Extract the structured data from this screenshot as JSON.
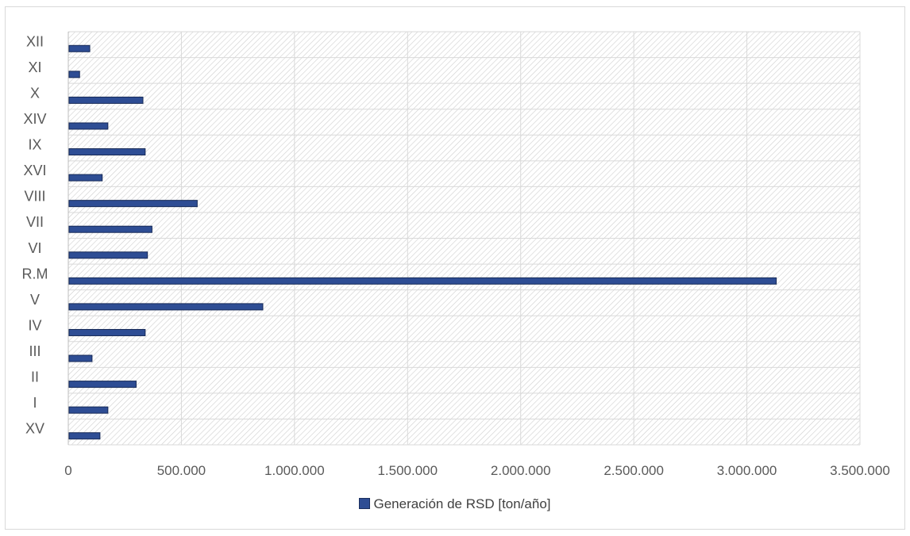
{
  "chart_data": {
    "type": "bar",
    "orientation": "horizontal",
    "categories": [
      "XV",
      "I",
      "II",
      "III",
      "IV",
      "V",
      "R.M",
      "VI",
      "VII",
      "VIII",
      "XVI",
      "IX",
      "XIV",
      "X",
      "XI",
      "XII"
    ],
    "series": [
      {
        "name": "Generación de RSD [ton/año]",
        "color": "#2e4d94",
        "values": [
          140000,
          175000,
          300000,
          105000,
          340000,
          860000,
          3130000,
          350000,
          370000,
          570000,
          150000,
          340000,
          175000,
          330000,
          50000,
          95000
        ]
      }
    ],
    "x_ticks": [
      "0",
      "500.000",
      "1.000.000",
      "1.500.000",
      "2.000.000",
      "2.500.000",
      "3.000.000",
      "3.500.000"
    ],
    "xlim": [
      0,
      3500000
    ],
    "grid": true,
    "legend_position": "bottom"
  }
}
